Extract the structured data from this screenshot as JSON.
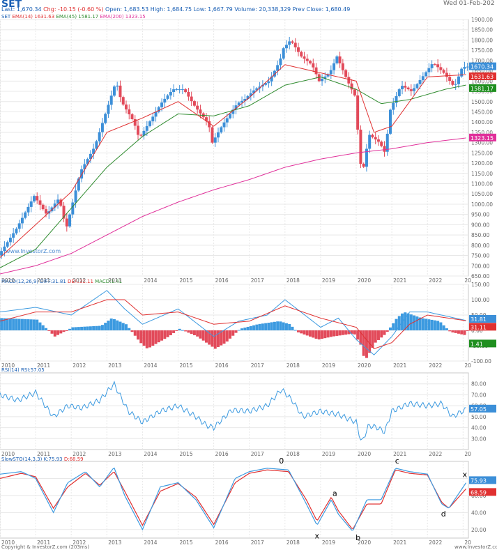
{
  "header": {
    "symbol": "SET",
    "date": "Wed 01-Feb-202",
    "last": "Last: 1,670.34",
    "chg": "Chg: -10.15 (-0.60 %)",
    "open": "Open: 1,683.53",
    "high": "High: 1,684.75",
    "low": "Low: 1,667.79",
    "volume": "Volume: 20,338,329",
    "prev": "Prev Close: 1,680.49"
  },
  "legend": {
    "price": "SET",
    "ema14": "EMA(14)",
    "ema14v": "1631.63",
    "ema45": "EMA(45)",
    "ema45v": "1581.17",
    "ema200": "EMA(200)",
    "ema200v": "1323.15",
    "macd": "MACD(12,26,9)",
    "diff": "DIFF:31.81",
    "dea": "DEA:31.11",
    "macdv": "MACD:1.41",
    "rsi": "RSI(14)",
    "rsiv": "RSI:57.05",
    "stoch": "SlowSTO(14,3,3)",
    "stochk": "K:75.93",
    "stochd": "D:68.59"
  },
  "watermark": "www.InvestorZ.com",
  "footer": {
    "left": "Copyright & InvestorZ.com  (203ms)",
    "right": "www.InvestorZ.co"
  },
  "colors": {
    "up": "#3c8fd8",
    "down": "#e24a5a",
    "ema14": "#e03030",
    "ema45": "#2e8b2e",
    "ema200": "#e0309a",
    "indicator": "#3c9ae0",
    "grid": "#e8e8e8",
    "axis": "#666666"
  },
  "chart_data": [
    {
      "type": "candlestick",
      "interval": "monthly",
      "x": [
        "2010",
        "2011",
        "2012",
        "2013",
        "2014",
        "2015",
        "2016",
        "2017",
        "2018",
        "2019",
        "2020",
        "2021",
        "2022",
        "20"
      ],
      "ylim": [
        650,
        1900
      ],
      "yticks": [
        650,
        700,
        750,
        800,
        850,
        900,
        950,
        1000,
        1050,
        1100,
        1150,
        1200,
        1250,
        1300,
        1350,
        1400,
        1450,
        1500,
        1550,
        1600,
        1650,
        1700,
        1750,
        1800,
        1850,
        1900
      ],
      "close_path": [
        [
          2010.0,
          750
        ],
        [
          2010.5,
          880
        ],
        [
          2011.0,
          1040
        ],
        [
          2011.35,
          950
        ],
        [
          2011.7,
          1030
        ],
        [
          2011.9,
          880
        ],
        [
          2012.3,
          1160
        ],
        [
          2012.7,
          1280
        ],
        [
          2013.0,
          1440
        ],
        [
          2013.3,
          1600
        ],
        [
          2013.45,
          1500
        ],
        [
          2013.8,
          1400
        ],
        [
          2013.95,
          1320
        ],
        [
          2014.2,
          1390
        ],
        [
          2014.6,
          1500
        ],
        [
          2014.9,
          1560
        ],
        [
          2015.2,
          1560
        ],
        [
          2015.5,
          1480
        ],
        [
          2015.9,
          1390
        ],
        [
          2016.0,
          1300
        ],
        [
          2016.3,
          1390
        ],
        [
          2016.7,
          1490
        ],
        [
          2016.9,
          1510
        ],
        [
          2017.2,
          1560
        ],
        [
          2017.6,
          1600
        ],
        [
          2017.9,
          1700
        ],
        [
          2018.0,
          1760
        ],
        [
          2018.2,
          1800
        ],
        [
          2018.5,
          1720
        ],
        [
          2018.8,
          1680
        ],
        [
          2019.0,
          1600
        ],
        [
          2019.3,
          1640
        ],
        [
          2019.5,
          1720
        ],
        [
          2019.8,
          1600
        ],
        [
          2020.0,
          1530
        ],
        [
          2020.2,
          1130
        ],
        [
          2020.4,
          1340
        ],
        [
          2020.7,
          1300
        ],
        [
          2020.85,
          1250
        ],
        [
          2021.0,
          1460
        ],
        [
          2021.3,
          1580
        ],
        [
          2021.6,
          1550
        ],
        [
          2021.9,
          1620
        ],
        [
          2022.2,
          1690
        ],
        [
          2022.5,
          1640
        ],
        [
          2022.8,
          1570
        ],
        [
          2023.0,
          1660
        ],
        [
          2023.1,
          1670.34
        ]
      ],
      "ema14_path": [
        [
          2010.0,
          740
        ],
        [
          2011.0,
          900
        ],
        [
          2012.0,
          1060
        ],
        [
          2013.0,
          1350
        ],
        [
          2014.0,
          1420
        ],
        [
          2015.0,
          1500
        ],
        [
          2016.0,
          1380
        ],
        [
          2017.0,
          1520
        ],
        [
          2018.0,
          1680
        ],
        [
          2019.0,
          1640
        ],
        [
          2020.0,
          1600
        ],
        [
          2020.5,
          1350
        ],
        [
          2021.0,
          1380
        ],
        [
          2022.0,
          1620
        ],
        [
          2023.1,
          1631.63
        ]
      ],
      "ema45_path": [
        [
          2010.0,
          690
        ],
        [
          2011.0,
          780
        ],
        [
          2012.0,
          980
        ],
        [
          2013.0,
          1180
        ],
        [
          2014.0,
          1330
        ],
        [
          2015.0,
          1440
        ],
        [
          2016.0,
          1430
        ],
        [
          2017.0,
          1480
        ],
        [
          2018.0,
          1580
        ],
        [
          2019.0,
          1620
        ],
        [
          2020.0,
          1560
        ],
        [
          2020.7,
          1490
        ],
        [
          2021.5,
          1510
        ],
        [
          2022.5,
          1560
        ],
        [
          2023.1,
          1581.17
        ]
      ],
      "ema200_path": [
        [
          2010.0,
          660
        ],
        [
          2011.0,
          700
        ],
        [
          2012.0,
          760
        ],
        [
          2013.0,
          850
        ],
        [
          2014.0,
          940
        ],
        [
          2015.0,
          1010
        ],
        [
          2016.0,
          1070
        ],
        [
          2017.0,
          1120
        ],
        [
          2018.0,
          1180
        ],
        [
          2019.0,
          1220
        ],
        [
          2020.0,
          1250
        ],
        [
          2021.0,
          1270
        ],
        [
          2022.0,
          1300
        ],
        [
          2023.1,
          1323.15
        ]
      ]
    },
    {
      "type": "bar-line",
      "name": "MACD",
      "ylim": [
        -100,
        150
      ],
      "yticks": [
        -100,
        -50,
        0,
        50,
        100,
        150
      ],
      "hist_path": [
        [
          2010.0,
          40
        ],
        [
          2011.0,
          35
        ],
        [
          2011.5,
          -20
        ],
        [
          2012.0,
          10
        ],
        [
          2012.8,
          15
        ],
        [
          2013.1,
          40
        ],
        [
          2013.5,
          20
        ],
        [
          2013.9,
          -40
        ],
        [
          2014.1,
          -60
        ],
        [
          2014.7,
          -20
        ],
        [
          2015.0,
          5
        ],
        [
          2015.5,
          -20
        ],
        [
          2016.0,
          -60
        ],
        [
          2016.3,
          -40
        ],
        [
          2016.7,
          5
        ],
        [
          2017.2,
          20
        ],
        [
          2017.8,
          30
        ],
        [
          2018.1,
          20
        ],
        [
          2018.3,
          -5
        ],
        [
          2018.9,
          -30
        ],
        [
          2019.3,
          -20
        ],
        [
          2019.9,
          -10
        ],
        [
          2020.1,
          -50
        ],
        [
          2020.2,
          -100
        ],
        [
          2020.5,
          -40
        ],
        [
          2020.8,
          -10
        ],
        [
          2021.1,
          40
        ],
        [
          2021.3,
          60
        ],
        [
          2021.8,
          40
        ],
        [
          2022.3,
          30
        ],
        [
          2022.6,
          -5
        ],
        [
          2023.0,
          -15
        ],
        [
          2023.1,
          1.41
        ]
      ],
      "diff_path": [
        [
          2010.0,
          60
        ],
        [
          2011.0,
          75
        ],
        [
          2012.0,
          50
        ],
        [
          2013.0,
          130
        ],
        [
          2013.5,
          70
        ],
        [
          2014.0,
          20
        ],
        [
          2015.0,
          70
        ],
        [
          2016.0,
          -20
        ],
        [
          2016.7,
          30
        ],
        [
          2017.5,
          50
        ],
        [
          2018.0,
          100
        ],
        [
          2019.0,
          10
        ],
        [
          2019.5,
          40
        ],
        [
          2020.0,
          -30
        ],
        [
          2020.5,
          -80
        ],
        [
          2021.0,
          -20
        ],
        [
          2021.5,
          60
        ],
        [
          2022.0,
          60
        ],
        [
          2023.1,
          31.81
        ]
      ],
      "dea_path": [
        [
          2010.0,
          30
        ],
        [
          2011.0,
          60
        ],
        [
          2012.0,
          60
        ],
        [
          2013.0,
          100
        ],
        [
          2013.5,
          100
        ],
        [
          2014.0,
          50
        ],
        [
          2015.0,
          60
        ],
        [
          2016.0,
          20
        ],
        [
          2017.0,
          30
        ],
        [
          2018.0,
          80
        ],
        [
          2019.0,
          40
        ],
        [
          2020.0,
          10
        ],
        [
          2020.5,
          -60
        ],
        [
          2021.0,
          -40
        ],
        [
          2021.5,
          20
        ],
        [
          2022.0,
          50
        ],
        [
          2023.1,
          31.11
        ]
      ]
    },
    {
      "type": "line",
      "name": "RSI",
      "ylim": [
        20,
        90
      ],
      "yticks": [
        30,
        40,
        50,
        60,
        70,
        80
      ],
      "path": [
        [
          2010.0,
          70
        ],
        [
          2010.5,
          65
        ],
        [
          2011.0,
          72
        ],
        [
          2011.5,
          50
        ],
        [
          2011.9,
          60
        ],
        [
          2012.3,
          58
        ],
        [
          2012.8,
          65
        ],
        [
          2013.2,
          80
        ],
        [
          2013.6,
          55
        ],
        [
          2014.0,
          45
        ],
        [
          2014.5,
          55
        ],
        [
          2015.0,
          60
        ],
        [
          2015.5,
          50
        ],
        [
          2015.8,
          42
        ],
        [
          2016.0,
          40
        ],
        [
          2016.5,
          56
        ],
        [
          2017.0,
          55
        ],
        [
          2017.5,
          60
        ],
        [
          2017.9,
          75
        ],
        [
          2018.2,
          65
        ],
        [
          2018.5,
          50
        ],
        [
          2019.0,
          55
        ],
        [
          2019.5,
          52
        ],
        [
          2020.0,
          45
        ],
        [
          2020.15,
          26
        ],
        [
          2020.35,
          42
        ],
        [
          2020.6,
          40
        ],
        [
          2020.8,
          36
        ],
        [
          2021.0,
          55
        ],
        [
          2021.5,
          62
        ],
        [
          2022.0,
          60
        ],
        [
          2022.4,
          62
        ],
        [
          2022.7,
          50
        ],
        [
          2023.1,
          57.05
        ]
      ]
    },
    {
      "type": "line",
      "name": "SlowSTO",
      "ylim": [
        10,
        100
      ],
      "yticks": [
        20,
        40,
        60,
        80
      ],
      "k_path": [
        [
          2010.0,
          85
        ],
        [
          2010.6,
          88
        ],
        [
          2011.0,
          80
        ],
        [
          2011.5,
          40
        ],
        [
          2011.9,
          75
        ],
        [
          2012.4,
          88
        ],
        [
          2012.8,
          70
        ],
        [
          2013.2,
          93
        ],
        [
          2013.5,
          60
        ],
        [
          2014.0,
          20
        ],
        [
          2014.5,
          70
        ],
        [
          2015.0,
          75
        ],
        [
          2015.5,
          55
        ],
        [
          2016.0,
          22
        ],
        [
          2016.6,
          80
        ],
        [
          2017.0,
          88
        ],
        [
          2017.5,
          92
        ],
        [
          2018.1,
          90
        ],
        [
          2018.6,
          50
        ],
        [
          2018.9,
          25
        ],
        [
          2019.3,
          55
        ],
        [
          2019.5,
          38
        ],
        [
          2019.9,
          18
        ],
        [
          2020.3,
          55
        ],
        [
          2020.7,
          55
        ],
        [
          2021.1,
          92
        ],
        [
          2021.5,
          88
        ],
        [
          2022.0,
          85
        ],
        [
          2022.4,
          50
        ],
        [
          2022.6,
          45
        ],
        [
          2023.1,
          75.93
        ]
      ],
      "d_path": [
        [
          2010.0,
          80
        ],
        [
          2010.6,
          86
        ],
        [
          2011.0,
          82
        ],
        [
          2011.5,
          45
        ],
        [
          2011.9,
          70
        ],
        [
          2012.4,
          86
        ],
        [
          2012.8,
          72
        ],
        [
          2013.2,
          88
        ],
        [
          2013.5,
          65
        ],
        [
          2014.0,
          25
        ],
        [
          2014.5,
          65
        ],
        [
          2015.0,
          74
        ],
        [
          2015.5,
          58
        ],
        [
          2016.0,
          26
        ],
        [
          2016.6,
          75
        ],
        [
          2017.0,
          86
        ],
        [
          2017.5,
          90
        ],
        [
          2018.1,
          88
        ],
        [
          2018.6,
          55
        ],
        [
          2018.9,
          30
        ],
        [
          2019.3,
          58
        ],
        [
          2019.5,
          42
        ],
        [
          2019.9,
          20
        ],
        [
          2020.3,
          50
        ],
        [
          2020.7,
          50
        ],
        [
          2021.1,
          90
        ],
        [
          2021.5,
          86
        ],
        [
          2022.0,
          84
        ],
        [
          2022.4,
          52
        ],
        [
          2022.6,
          45
        ],
        [
          2023.1,
          68.59
        ]
      ],
      "annotations": [
        {
          "text": "0",
          "x": 2017.9,
          "y": 100
        },
        {
          "text": "a",
          "x": 2019.4,
          "y": 62
        },
        {
          "text": "x",
          "x": 2018.9,
          "y": 12
        },
        {
          "text": "b",
          "x": 2020.05,
          "y": 10
        },
        {
          "text": "c",
          "x": 2021.15,
          "y": 100
        },
        {
          "text": "d",
          "x": 2022.45,
          "y": 38
        },
        {
          "text": "x",
          "x": 2023.05,
          "y": 84
        }
      ]
    }
  ]
}
